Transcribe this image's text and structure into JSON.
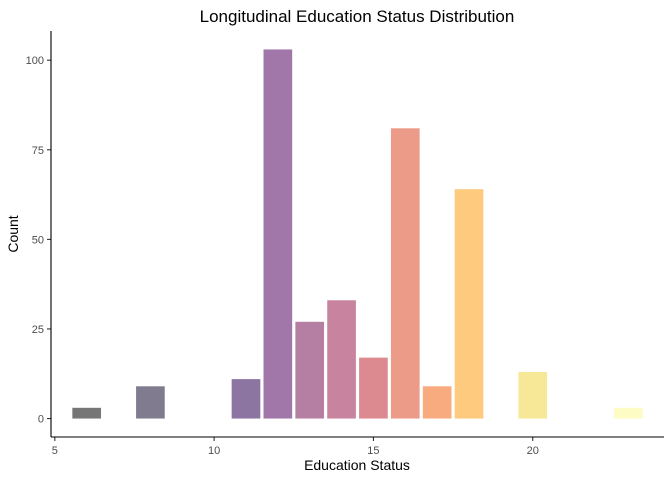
{
  "chart_data": {
    "type": "bar",
    "title": "Longitudinal Education Status Distribution",
    "xlabel": "Education Status",
    "ylabel": "Count",
    "x": [
      6,
      8,
      11,
      12,
      13,
      14,
      15,
      16,
      17,
      18,
      20,
      23
    ],
    "values": [
      3,
      9,
      11,
      103,
      27,
      33,
      17,
      81,
      9,
      64,
      13,
      3
    ],
    "colors": [
      "#767676",
      "#817b8f",
      "#8c75a1",
      "#a077a8",
      "#b57ea3",
      "#c8839e",
      "#dc8a8f",
      "#ed9b89",
      "#f9ab80",
      "#fdca7e",
      "#f6e897",
      "#fdfcc5"
    ],
    "xlim": [
      4.88,
      24.12
    ],
    "ylim": [
      -5.15,
      108.15
    ],
    "x_ticks": [
      5,
      10,
      15,
      20
    ],
    "y_ticks": [
      0,
      25,
      50,
      75,
      100
    ],
    "grid": false,
    "legend": "none"
  }
}
